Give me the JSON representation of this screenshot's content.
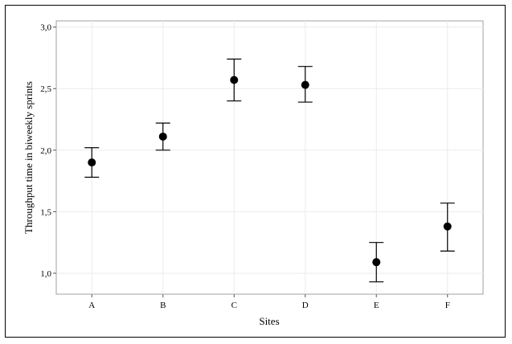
{
  "chart_data": {
    "type": "scatter",
    "subtype": "errorbar",
    "title": "",
    "xlabel": "Sites",
    "ylabel": "Throughput time in biweekly sprints",
    "categories": [
      "A",
      "B",
      "C",
      "D",
      "E",
      "F"
    ],
    "values": [
      1.9,
      2.11,
      2.57,
      2.53,
      1.09,
      1.38
    ],
    "error_low": [
      1.78,
      2.0,
      2.4,
      2.39,
      0.93,
      1.18
    ],
    "error_high": [
      2.02,
      2.22,
      2.74,
      2.68,
      1.25,
      1.57
    ],
    "ylim": [
      0.83,
      3.05
    ],
    "y_ticks": [
      1.0,
      1.5,
      2.0,
      2.5,
      3.0
    ],
    "y_tick_labels": [
      "1,0",
      "1,5",
      "2,0",
      "2,5",
      "3,0"
    ],
    "grid": true,
    "colors": {
      "marker": "#000000",
      "grid": "#ebebeb",
      "axis": "#a0a0a0"
    }
  }
}
